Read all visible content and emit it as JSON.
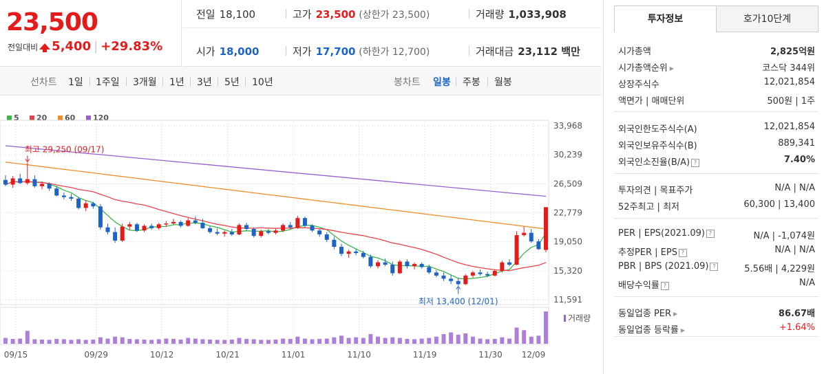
{
  "header": {
    "price": "23,500",
    "change_label": "전일대비",
    "change_amount": "5,400",
    "change_pct": "+29.83%"
  },
  "summary": {
    "prev_close": {
      "label": "전일",
      "value": "18,100"
    },
    "high": {
      "label": "고가",
      "value": "23,500",
      "sub": "(상한가 23,500)"
    },
    "volume": {
      "label": "거래량",
      "value": "1,033,908"
    },
    "open": {
      "label": "시가",
      "value": "18,000"
    },
    "low": {
      "label": "저가",
      "value": "17,700",
      "sub": "(하한가 12,700)"
    },
    "amount": {
      "label": "거래대금",
      "value": "23,112 백만"
    }
  },
  "period_bar": {
    "line_chart_label": "선차트",
    "periods": [
      "1일",
      "1주일",
      "3개월",
      "1년",
      "3년",
      "5년",
      "10년"
    ],
    "candle_label": "봉차트",
    "candle_periods": [
      "일봉",
      "주봉",
      "월봉"
    ],
    "candle_selected": "일봉"
  },
  "panel": {
    "tabs": [
      "투자정보",
      "호가10단계"
    ],
    "active_tab": "투자정보",
    "rows_1": [
      {
        "label": "시가총액",
        "value": "2,825억원"
      },
      {
        "label": "시가총액순위",
        "value": "코스닥 344위"
      },
      {
        "label": "상장주식수",
        "value": "12,021,854"
      },
      {
        "label": "액면가 | 매매단위",
        "value": "500원 | 1주"
      }
    ],
    "rows_2": [
      {
        "label": "외국인한도주식수(A)",
        "value": "12,021,854"
      },
      {
        "label": "외국인보유주식수(B)",
        "value": "889,341"
      },
      {
        "label": "외국인소진율(B/A)",
        "value": "7.40%"
      }
    ],
    "rows_3": [
      {
        "label": "투자의견 | 목표주가",
        "value": "N/A | N/A"
      },
      {
        "label": "52주최고 | 최저",
        "value": "60,300 | 13,400"
      }
    ],
    "rows_4": [
      {
        "label": "PER | EPS(2021.09)",
        "value": "N/A | -1,074원"
      },
      {
        "label": "추정PER | EPS",
        "value": "N/A | N/A"
      },
      {
        "label": "PBR | BPS (2021.09)",
        "value": "5.56배 | 4,229원"
      },
      {
        "label": "배당수익률",
        "value": "N/A"
      }
    ],
    "rows_5": [
      {
        "label": "동일업종 PER",
        "value": "86.67배"
      },
      {
        "label": "동일업종 등락률",
        "value": "+1.64%"
      }
    ],
    "icon": "help-box-icon"
  },
  "chart_data": {
    "type": "candlestick",
    "y_ticks": [
      33968,
      30239,
      26509,
      22779,
      19050,
      15320,
      11591
    ],
    "x_ticks": [
      "09/15",
      "09/29",
      "10/12",
      "10/21",
      "11/01",
      "11/10",
      "11/19",
      "11/30",
      "12/09"
    ],
    "ylim": [
      11591,
      33968
    ],
    "legend": [
      {
        "name": "5",
        "color": "#3cb44b"
      },
      {
        "name": "20",
        "color": "#e8424a"
      },
      {
        "name": "60",
        "color": "#f08c2a"
      },
      {
        "name": "120",
        "color": "#9a5fd0"
      }
    ],
    "annotations": {
      "high": "최고 29,250 (09/17)",
      "low": "최저 13,400 (12/01)"
    },
    "volume_label": "거래량",
    "candles": [
      [
        27000,
        27600,
        26200,
        26400
      ],
      [
        26400,
        27500,
        26000,
        27200
      ],
      [
        27200,
        27800,
        26500,
        26600
      ],
      [
        26600,
        29250,
        26400,
        27100
      ],
      [
        27100,
        27600,
        26000,
        26200
      ],
      [
        26200,
        26800,
        25800,
        26500
      ],
      [
        26500,
        26700,
        25600,
        25900
      ],
      [
        25900,
        26200,
        24900,
        25000
      ],
      [
        25000,
        25400,
        24500,
        24800
      ],
      [
        24800,
        25200,
        24300,
        24600
      ],
      [
        24600,
        24800,
        23200,
        23400
      ],
      [
        23400,
        24400,
        23000,
        24000
      ],
      [
        24000,
        24200,
        23300,
        23600
      ],
      [
        23600,
        23900,
        20600,
        20900
      ],
      [
        20900,
        21400,
        20000,
        20300
      ],
      [
        20300,
        20900,
        18900,
        19200
      ],
      [
        19200,
        21400,
        19000,
        21000
      ],
      [
        21000,
        21600,
        20600,
        21300
      ],
      [
        21300,
        21500,
        20300,
        20500
      ],
      [
        20500,
        21300,
        20300,
        21100
      ],
      [
        21100,
        21400,
        20600,
        20800
      ],
      [
        20800,
        21500,
        20600,
        21300
      ],
      [
        21300,
        21700,
        21000,
        21400
      ],
      [
        21400,
        22000,
        21200,
        21600
      ],
      [
        21600,
        21800,
        20900,
        21100
      ],
      [
        21100,
        22100,
        21000,
        21800
      ],
      [
        21800,
        22300,
        21300,
        21500
      ],
      [
        21500,
        22000,
        20700,
        20800
      ],
      [
        20800,
        21100,
        20100,
        20300
      ],
      [
        20300,
        20800,
        19900,
        20100
      ],
      [
        20100,
        20500,
        19700,
        20300
      ],
      [
        20300,
        20700,
        19800,
        20000
      ],
      [
        20000,
        21400,
        19900,
        21200
      ],
      [
        21200,
        21500,
        20500,
        20700
      ],
      [
        20700,
        20900,
        19600,
        19800
      ],
      [
        19800,
        20600,
        19600,
        20400
      ],
      [
        20400,
        20700,
        20000,
        20200
      ],
      [
        20200,
        20700,
        20000,
        20500
      ],
      [
        20500,
        21400,
        20300,
        21200
      ],
      [
        21200,
        21600,
        20700,
        20900
      ],
      [
        20900,
        22400,
        20700,
        22100
      ],
      [
        22100,
        22300,
        20900,
        21100
      ],
      [
        21100,
        21300,
        20300,
        20500
      ],
      [
        20500,
        20700,
        19700,
        20000
      ],
      [
        20000,
        20300,
        19000,
        19300
      ],
      [
        19300,
        19700,
        18100,
        18400
      ],
      [
        18400,
        18800,
        17200,
        17500
      ],
      [
        17500,
        18000,
        17000,
        17800
      ],
      [
        17800,
        18100,
        17300,
        17600
      ],
      [
        17600,
        17900,
        16900,
        17100
      ],
      [
        17100,
        17400,
        15700,
        15900
      ],
      [
        15900,
        16700,
        15600,
        16400
      ],
      [
        16400,
        16900,
        15900,
        16100
      ],
      [
        16100,
        16500,
        14700,
        15000
      ],
      [
        15000,
        16700,
        14900,
        16500
      ],
      [
        16500,
        16800,
        15600,
        15900
      ],
      [
        15900,
        16400,
        15500,
        16200
      ],
      [
        16200,
        16400,
        15600,
        15800
      ],
      [
        15800,
        16100,
        14900,
        15100
      ],
      [
        15100,
        15400,
        14500,
        14700
      ],
      [
        14700,
        15100,
        14000,
        14300
      ],
      [
        14300,
        14800,
        13600,
        14000
      ],
      [
        14000,
        14400,
        13400,
        13600
      ],
      [
        13600,
        14900,
        13500,
        14700
      ],
      [
        14700,
        15300,
        14400,
        15100
      ],
      [
        15100,
        15500,
        14700,
        14900
      ],
      [
        14900,
        15200,
        14500,
        14700
      ],
      [
        14700,
        15500,
        14600,
        15300
      ],
      [
        15300,
        16600,
        15100,
        16400
      ],
      [
        16400,
        16800,
        15900,
        16100
      ],
      [
        16100,
        20400,
        16000,
        19900
      ],
      [
        19900,
        21000,
        19700,
        20200
      ],
      [
        20200,
        20700,
        18900,
        19100
      ],
      [
        19100,
        19400,
        18000,
        18100
      ],
      [
        18000,
        23500,
        17700,
        23500
      ]
    ],
    "volume": [
      0.18,
      0.15,
      0.16,
      0.4,
      0.14,
      0.13,
      0.12,
      0.15,
      0.14,
      0.12,
      0.14,
      0.12,
      0.13,
      0.2,
      0.16,
      0.22,
      0.2,
      0.15,
      0.14,
      0.13,
      0.12,
      0.14,
      0.16,
      0.15,
      0.13,
      0.18,
      0.16,
      0.14,
      0.13,
      0.12,
      0.12,
      0.13,
      0.18,
      0.15,
      0.14,
      0.12,
      0.12,
      0.13,
      0.16,
      0.15,
      0.22,
      0.16,
      0.14,
      0.15,
      0.16,
      0.2,
      0.25,
      0.18,
      0.2,
      0.18,
      0.3,
      0.22,
      0.18,
      0.2,
      0.18,
      0.15,
      0.14,
      0.16,
      0.18,
      0.22,
      0.3,
      0.35,
      0.28,
      0.32,
      0.22,
      0.16,
      0.14,
      0.15,
      0.2,
      0.16,
      0.5,
      0.42,
      0.22,
      0.25,
      1.0
    ]
  }
}
